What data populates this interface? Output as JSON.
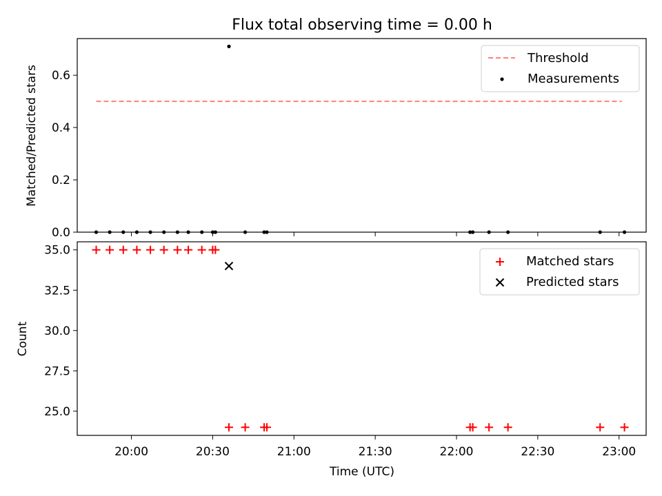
{
  "chart_data": [
    {
      "type": "scatter",
      "title": "Flux total observing time = 0.00 h",
      "xlabel": "",
      "ylabel": "Matched/Predicted stars",
      "ylim": [
        0,
        0.74
      ],
      "yticks": [
        "0.0",
        "0.2",
        "0.4",
        "0.6"
      ],
      "grid": false,
      "legend_position": "upper right",
      "threshold": {
        "name": "Threshold",
        "value": 0.5,
        "x_start": "19:47",
        "x_end": "23:01",
        "color": "#ff7f7f",
        "style": "dashed"
      },
      "series": [
        {
          "name": "Measurements",
          "color": "#000000",
          "marker": "dot",
          "x": [
            "19:47",
            "19:52",
            "19:57",
            "20:02",
            "20:07",
            "20:12",
            "20:17",
            "20:21",
            "20:26",
            "20:30",
            "20:31",
            "20:36",
            "20:42",
            "20:49",
            "20:50",
            "22:05",
            "22:06",
            "22:12",
            "22:19",
            "22:53",
            "23:02"
          ],
          "y": [
            0,
            0,
            0,
            0,
            0,
            0,
            0,
            0,
            0,
            0,
            0,
            0.71,
            0,
            0,
            0,
            0,
            0,
            0,
            0,
            0,
            0
          ]
        }
      ]
    },
    {
      "type": "scatter",
      "title": "",
      "xlabel": "Time (UTC)",
      "ylabel": "Count",
      "ylim": [
        23.5,
        35.5
      ],
      "yticks": [
        "25.0",
        "27.5",
        "30.0",
        "32.5",
        "35.0"
      ],
      "xlim": [
        "19:40",
        "23:10"
      ],
      "xticks": [
        "20:00",
        "20:30",
        "21:00",
        "21:30",
        "22:00",
        "22:30",
        "23:00"
      ],
      "grid": false,
      "legend_position": "upper right",
      "series": [
        {
          "name": "Matched stars",
          "color": "#ff0000",
          "marker": "plus",
          "x": [
            "19:47",
            "19:52",
            "19:57",
            "20:02",
            "20:07",
            "20:12",
            "20:17",
            "20:21",
            "20:26",
            "20:30",
            "20:31",
            "20:36",
            "20:42",
            "20:49",
            "20:50",
            "22:05",
            "22:06",
            "22:12",
            "22:19",
            "22:53",
            "23:02"
          ],
          "y": [
            35,
            35,
            35,
            35,
            35,
            35,
            35,
            35,
            35,
            35,
            35,
            24,
            24,
            24,
            24,
            24,
            24,
            24,
            24,
            24,
            24
          ]
        },
        {
          "name": "Predicted stars",
          "color": "#000000",
          "marker": "x",
          "x": [
            "20:36"
          ],
          "y": [
            34
          ]
        }
      ]
    }
  ]
}
